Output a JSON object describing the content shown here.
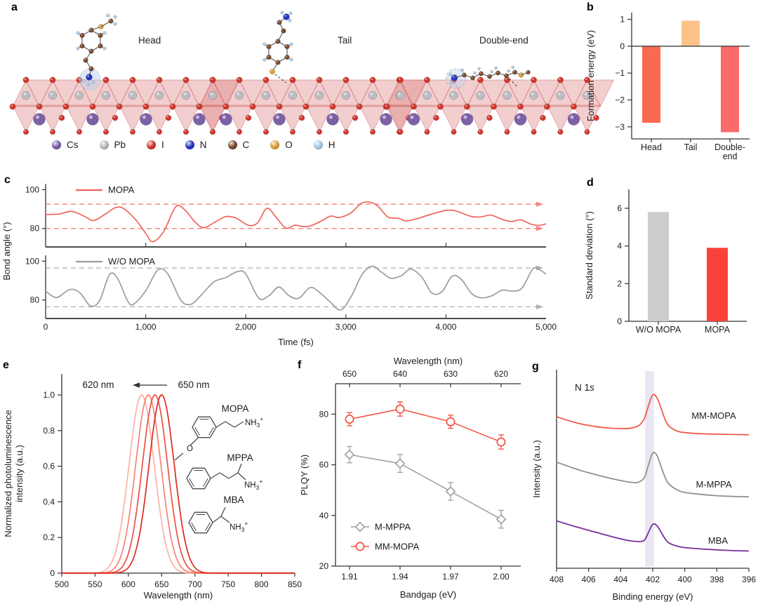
{
  "panels": {
    "a": {
      "letter": "a",
      "scenes": [
        {
          "title": "Head",
          "variant": "head"
        },
        {
          "title": "Tail",
          "variant": "tail"
        },
        {
          "title": "Double-end",
          "variant": "double"
        }
      ],
      "legend": [
        {
          "symbol": "Cs",
          "color": "#7c60a8"
        },
        {
          "symbol": "Pb",
          "color": "#bcbcc2"
        },
        {
          "symbol": "I",
          "color": "#d2372c"
        },
        {
          "symbol": "N",
          "color": "#2a35c4"
        },
        {
          "symbol": "C",
          "color": "#7a4a2e"
        },
        {
          "symbol": "O",
          "color": "#dba13c"
        },
        {
          "symbol": "H",
          "color": "#a9c9e4"
        }
      ]
    },
    "b": {
      "letter": "b"
    },
    "c": {
      "letter": "c"
    },
    "d": {
      "letter": "d"
    },
    "e": {
      "letter": "e"
    },
    "f": {
      "letter": "f"
    },
    "g": {
      "letter": "g"
    }
  },
  "chart_data": [
    {
      "id": "b",
      "type": "bar",
      "ylabel": "Formation energy (eV)",
      "ylim": [
        -3.45,
        1.25
      ],
      "yticks": [
        {
          "v": 1,
          "label": "1"
        },
        {
          "v": 0,
          "label": "0"
        },
        {
          "v": -1,
          "label": "−1"
        },
        {
          "v": -2,
          "label": "−2"
        },
        {
          "v": -3,
          "label": "−3"
        }
      ],
      "categories": [
        [
          "Head"
        ],
        [
          "Tail"
        ],
        [
          "Double-",
          "end"
        ]
      ],
      "values": [
        -2.85,
        0.95,
        -3.2
      ],
      "colors": [
        "#fb6a50",
        "#fcc288",
        "#fc6a6a"
      ]
    },
    {
      "id": "c",
      "type": "line",
      "xlabel": "Time (fs)",
      "ylabel": "Bond angle (°)",
      "xlim": [
        0,
        5000
      ],
      "ylim": [
        70.5,
        103
      ],
      "xticks": [
        {
          "v": 0,
          "label": "0"
        },
        {
          "v": 1000,
          "label": "1,000"
        },
        {
          "v": 2000,
          "label": "2,000"
        },
        {
          "v": 3000,
          "label": "3,000"
        },
        {
          "v": 4000,
          "label": "4,000"
        },
        {
          "v": 5000,
          "label": "5,000"
        }
      ],
      "yticks": [
        {
          "v": 100,
          "label": "100"
        },
        {
          "v": 80,
          "label": "80"
        }
      ],
      "series": [
        {
          "name": "MOPA",
          "color": "#f0645c",
          "dashed": [
            92.5,
            80
          ],
          "points": [
            [
              0,
              87.2
            ],
            [
              130,
              87.4
            ],
            [
              260,
              88.8
            ],
            [
              390,
              86.2
            ],
            [
              480,
              84.1
            ],
            [
              600,
              87.5
            ],
            [
              700,
              90.8
            ],
            [
              780,
              90.2
            ],
            [
              900,
              84.5
            ],
            [
              1000,
              77.5
            ],
            [
              1070,
              73.2
            ],
            [
              1180,
              78.5
            ],
            [
              1300,
              91.2
            ],
            [
              1390,
              89.6
            ],
            [
              1490,
              83.5
            ],
            [
              1580,
              80.4
            ],
            [
              1700,
              83.5
            ],
            [
              1800,
              86.1
            ],
            [
              1900,
              85.4
            ],
            [
              2030,
              81.6
            ],
            [
              2120,
              83.0
            ],
            [
              2210,
              90.4
            ],
            [
              2300,
              86.0
            ],
            [
              2400,
              80.2
            ],
            [
              2490,
              81.7
            ],
            [
              2570,
              81.0
            ],
            [
              2650,
              81.4
            ],
            [
              2760,
              84.0
            ],
            [
              2850,
              86.4
            ],
            [
              2930,
              85.6
            ],
            [
              3050,
              88.0
            ],
            [
              3150,
              92.8
            ],
            [
              3230,
              93.6
            ],
            [
              3320,
              91.5
            ],
            [
              3420,
              85.9
            ],
            [
              3520,
              85.3
            ],
            [
              3600,
              83.9
            ],
            [
              3700,
              84.9
            ],
            [
              3850,
              87.3
            ],
            [
              4000,
              89.3
            ],
            [
              4100,
              89.0
            ],
            [
              4250,
              86.2
            ],
            [
              4350,
              86.0
            ],
            [
              4450,
              86.9
            ],
            [
              4550,
              84.9
            ],
            [
              4650,
              83.6
            ],
            [
              4750,
              84.4
            ],
            [
              4850,
              82.2
            ],
            [
              4930,
              81.6
            ],
            [
              5000,
              82.4
            ]
          ]
        },
        {
          "name": "W/O MOPA",
          "color": "#9c9c9c",
          "dashed": [
            96.5,
            76.5
          ],
          "points": [
            [
              0,
              84.6
            ],
            [
              110,
              81.3
            ],
            [
              240,
              85.4
            ],
            [
              340,
              83.8
            ],
            [
              450,
              76.9
            ],
            [
              540,
              79.8
            ],
            [
              640,
              93.2
            ],
            [
              720,
              91.0
            ],
            [
              820,
              79.5
            ],
            [
              880,
              77.9
            ],
            [
              1000,
              84.8
            ],
            [
              1120,
              95.4
            ],
            [
              1220,
              93.5
            ],
            [
              1350,
              80.0
            ],
            [
              1450,
              77.8
            ],
            [
              1560,
              82.8
            ],
            [
              1680,
              89.3
            ],
            [
              1800,
              91.6
            ],
            [
              1920,
              94.7
            ],
            [
              2000,
              93.4
            ],
            [
              2130,
              81.0
            ],
            [
              2230,
              82.2
            ],
            [
              2330,
              86.7
            ],
            [
              2430,
              82.3
            ],
            [
              2530,
              80.9
            ],
            [
              2640,
              86.4
            ],
            [
              2730,
              84.2
            ],
            [
              2840,
              79.2
            ],
            [
              2950,
              74.9
            ],
            [
              3060,
              82.5
            ],
            [
              3160,
              93.0
            ],
            [
              3260,
              97.4
            ],
            [
              3360,
              94.2
            ],
            [
              3450,
              91.2
            ],
            [
              3550,
              92.4
            ],
            [
              3650,
              95.9
            ],
            [
              3760,
              91.7
            ],
            [
              3860,
              83.6
            ],
            [
              3960,
              84.3
            ],
            [
              4060,
              92.2
            ],
            [
              4150,
              90.8
            ],
            [
              4260,
              83.2
            ],
            [
              4360,
              81.1
            ],
            [
              4460,
              82.2
            ],
            [
              4560,
              85.1
            ],
            [
              4660,
              84.6
            ],
            [
              4760,
              86.2
            ],
            [
              4870,
              96.2
            ],
            [
              4940,
              95.4
            ],
            [
              5000,
              93.4
            ]
          ]
        }
      ]
    },
    {
      "id": "d",
      "type": "bar",
      "ylabel": "Standard deviation (°)",
      "ylim": [
        0,
        7
      ],
      "yticks": [
        {
          "v": 0,
          "label": "0"
        },
        {
          "v": 2,
          "label": "2"
        },
        {
          "v": 4,
          "label": "4"
        },
        {
          "v": 6,
          "label": "6"
        }
      ],
      "categories": [
        [
          "W/O MOPA"
        ],
        [
          "MOPA"
        ]
      ],
      "values": [
        5.8,
        3.9
      ],
      "colors": [
        "#cccccc",
        "#f8423a"
      ]
    },
    {
      "id": "e",
      "type": "line",
      "xlabel": "Wavelength (nm)",
      "ylabel_lines": [
        "Normalized photoluminescence",
        "intensity (a.u.)"
      ],
      "xlim": [
        500,
        850
      ],
      "ylim": [
        0,
        1.12
      ],
      "xticks": [
        {
          "v": 500,
          "label": "500"
        },
        {
          "v": 550,
          "label": "550"
        },
        {
          "v": 600,
          "label": "600"
        },
        {
          "v": 650,
          "label": "650"
        },
        {
          "v": 700,
          "label": "700"
        },
        {
          "v": 750,
          "label": "750"
        },
        {
          "v": 800,
          "label": "800"
        },
        {
          "v": 850,
          "label": "850"
        }
      ],
      "yticks": [
        {
          "v": 1,
          "label": "1.0"
        },
        {
          "v": 0.8,
          "label": "0.8"
        },
        {
          "v": 0.6,
          "label": "0.6"
        },
        {
          "v": 0.4,
          "label": "0.4"
        },
        {
          "v": 0.2,
          "label": "0.2"
        },
        {
          "v": 0,
          "label": "0"
        }
      ],
      "peaks": [
        {
          "center": 620,
          "sigma": 19,
          "color": "#fbb0a6"
        },
        {
          "center": 630,
          "sigma": 19,
          "color": "#f58177"
        },
        {
          "center": 640,
          "sigma": 19,
          "color": "#ee4f43"
        },
        {
          "center": 650,
          "sigma": 19,
          "color": "#d92b1f"
        }
      ],
      "annotation": {
        "left": "620 nm",
        "right": "650 nm"
      },
      "molecules": [
        {
          "label": "MOPA",
          "amine": {
            "main": "NH",
            "sub": "3",
            "sup": "+"
          },
          "hetero": "O"
        },
        {
          "label": "MPPA",
          "amine": {
            "main": "NH",
            "sub": "3",
            "sup": "+"
          }
        },
        {
          "label": "MBA",
          "amine": {
            "main": "NH",
            "sub": "3",
            "sup": "+"
          }
        }
      ]
    },
    {
      "id": "f",
      "type": "line-scatter",
      "xlabel": "Bandgap (eV)",
      "ylabel": "PLQY (%)",
      "top_label": "Wavelength (nm)",
      "x_labels": [
        "1.91",
        "1.94",
        "1.97",
        "2.00"
      ],
      "top_ticks": [
        "650",
        "640",
        "630",
        "620"
      ],
      "ylim": [
        20,
        92
      ],
      "yticks": [
        {
          "v": 20,
          "label": "20"
        },
        {
          "v": 40,
          "label": "40"
        },
        {
          "v": 60,
          "label": "60"
        },
        {
          "v": 80,
          "label": "80"
        }
      ],
      "series": [
        {
          "name": "M-MPPA",
          "marker": "diamond",
          "color": "#9e9e9e",
          "values": [
            64,
            60.5,
            49.5,
            38.5
          ],
          "errors": [
            3.2,
            3.5,
            3.5,
            3.5
          ]
        },
        {
          "name": "MM-MOPA",
          "marker": "circle",
          "color": "#f4503f",
          "values": [
            78,
            82,
            77,
            69
          ],
          "errors": [
            2.6,
            2.8,
            2.6,
            2.8
          ]
        }
      ]
    },
    {
      "id": "g",
      "type": "line",
      "xlabel": "Binding energy (eV)",
      "ylabel": "Intensity (a.u.)",
      "annotation": {
        "prefix": "N 1",
        "italic": "s"
      },
      "xlim": [
        408,
        396
      ],
      "xticks": [
        {
          "v": 408,
          "label": "408"
        },
        {
          "v": 406,
          "label": "406"
        },
        {
          "v": 404,
          "label": "404"
        },
        {
          "v": 402,
          "label": "402"
        },
        {
          "v": 400,
          "label": "400"
        },
        {
          "v": 398,
          "label": "398"
        },
        {
          "v": 396,
          "label": "396"
        }
      ],
      "band": {
        "center": 402.2,
        "width": 0.55,
        "color": "#e9e6f2"
      },
      "xs": [
        408,
        407.5,
        407,
        406.5,
        406,
        405.5,
        405,
        404.5,
        404,
        403.5,
        403,
        402.75,
        402.5,
        402.25,
        402,
        401.75,
        401.5,
        401.25,
        401,
        400.5,
        400,
        399,
        398,
        397,
        396
      ],
      "series": [
        {
          "name": "MM-MOPA",
          "color": "#f0594a",
          "y": [
            0.8,
            0.786,
            0.773,
            0.762,
            0.754,
            0.747,
            0.742,
            0.739,
            0.737,
            0.738,
            0.748,
            0.762,
            0.795,
            0.862,
            0.915,
            0.902,
            0.85,
            0.79,
            0.752,
            0.725,
            0.716,
            0.71,
            0.708,
            0.706,
            0.705
          ]
        },
        {
          "name": "M-MPPA",
          "color": "#909090",
          "y": [
            0.56,
            0.545,
            0.53,
            0.516,
            0.504,
            0.493,
            0.482,
            0.472,
            0.463,
            0.455,
            0.452,
            0.46,
            0.482,
            0.55,
            0.608,
            0.598,
            0.542,
            0.484,
            0.446,
            0.415,
            0.4,
            0.39,
            0.383,
            0.379,
            0.377
          ]
        },
        {
          "name": "MBA",
          "color": "#7a2f9c",
          "y": [
            0.25,
            0.237,
            0.224,
            0.212,
            0.2,
            0.189,
            0.177,
            0.166,
            0.155,
            0.146,
            0.141,
            0.141,
            0.15,
            0.192,
            0.232,
            0.226,
            0.194,
            0.158,
            0.134,
            0.117,
            0.109,
            0.102,
            0.097,
            0.093,
            0.091
          ]
        }
      ]
    }
  ]
}
